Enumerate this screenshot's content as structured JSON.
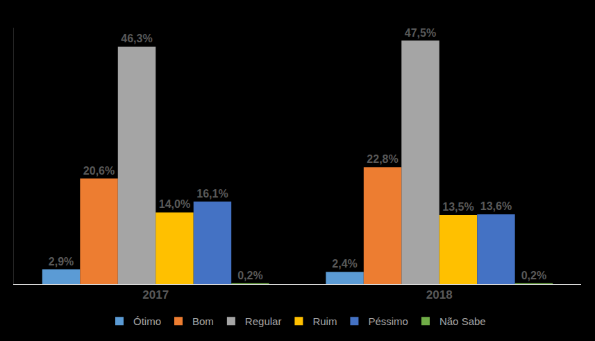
{
  "chart_data": {
    "type": "bar",
    "categories": [
      "2017",
      "2018"
    ],
    "series": [
      {
        "name": "Ótimo",
        "color": "#5b9bd5",
        "values": [
          2.9,
          2.4
        ],
        "value_labels": [
          "2,9%",
          "2,4%"
        ]
      },
      {
        "name": "Bom",
        "color": "#ed7d31",
        "values": [
          20.6,
          22.8
        ],
        "value_labels": [
          "20,6%",
          "22,8%"
        ]
      },
      {
        "name": "Regular",
        "color": "#a5a5a5",
        "values": [
          46.3,
          47.5
        ],
        "value_labels": [
          "46,3%",
          "47,5%"
        ]
      },
      {
        "name": "Ruim",
        "color": "#ffc000",
        "values": [
          14.0,
          13.5
        ],
        "value_labels": [
          "14,0%",
          "13,5%"
        ]
      },
      {
        "name": "Péssimo",
        "color": "#4472c4",
        "values": [
          16.1,
          13.6
        ],
        "value_labels": [
          "16,1%",
          "13,6%"
        ]
      },
      {
        "name": "Não Sabe",
        "color": "#70ad47",
        "values": [
          0.2,
          0.2
        ],
        "value_labels": [
          "0,2%",
          "0,2%"
        ]
      }
    ],
    "ylim": [
      0,
      50
    ],
    "grid": false,
    "legend": "bottom",
    "data_labels": true,
    "tick_labels": "x"
  }
}
